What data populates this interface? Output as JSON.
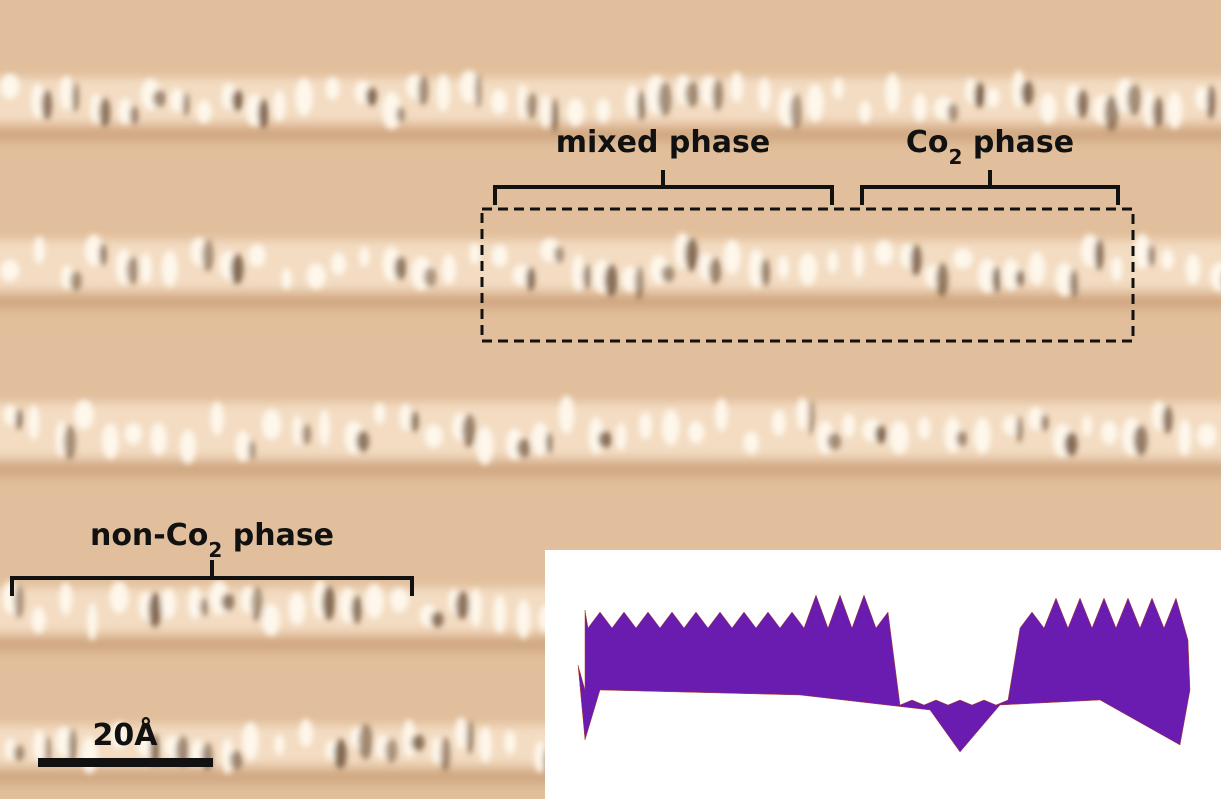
{
  "labels": {
    "mixed": "mixed phase",
    "co2": {
      "prefix": "Co",
      "subscript": "2",
      "suffix": " phase"
    },
    "nonco2": {
      "prefix": "non-Co",
      "subscript": "2",
      "suffix": " phase"
    },
    "scale_bar": "20Å"
  }
}
